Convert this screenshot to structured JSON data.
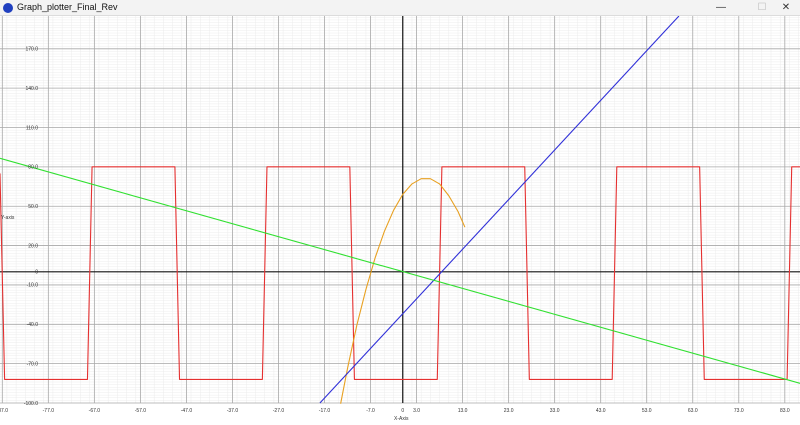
{
  "window": {
    "title": "Graph_plotter_Final_Rev",
    "minimize_glyph": "—",
    "maximize_glyph": "☐",
    "close_glyph": "✕"
  },
  "chart_data": {
    "type": "line",
    "xlabel": "X-Axis",
    "ylabel": "Y-axis",
    "xlim": [
      -87.5,
      86.3
    ],
    "ylim": [
      -100,
      195
    ],
    "x_ticks": [
      -87.0,
      -77.0,
      -67.0,
      -57.0,
      -47.0,
      -37.0,
      -27.0,
      -17.0,
      -7.0,
      0,
      3.0,
      13.0,
      23.0,
      33.0,
      43.0,
      53.0,
      63.0,
      73.0,
      83.0
    ],
    "x_tick_labels": [
      "-87.0",
      "-77.0",
      "-67.0",
      "-57.0",
      "-47.0",
      "-37.0",
      "-27.0",
      "-17.0",
      "-7.0",
      "0",
      "3.0",
      "13.0",
      "23.0",
      "33.0",
      "43.0",
      "53.0",
      "63.0",
      "73.0",
      "83.0"
    ],
    "y_ticks": [
      170,
      140,
      110,
      80,
      50,
      20,
      0,
      -10,
      -40,
      -70,
      -100
    ],
    "y_tick_labels": [
      "170.0",
      "140.0",
      "110.0",
      "80.0",
      "50.0",
      "20.0",
      "0",
      "-10.0",
      "-40.0",
      "-70.0",
      "-100.0"
    ],
    "major_grid_x_step": 10,
    "major_grid_y_step": 30,
    "minor_grid_step": 2,
    "grid": true,
    "series": [
      {
        "color": "#e53030",
        "x": [
          -87.5,
          -86.5,
          -68.5,
          -67.5,
          -49.5,
          -48.5,
          -30.5,
          -29.5,
          -11.5,
          -10.5,
          7.5,
          8.5,
          26.5,
          27.5,
          45.5,
          46.5,
          64.5,
          65.5,
          83.5,
          84.5,
          86.3
        ],
        "y": [
          75,
          -82,
          -82,
          80,
          80,
          -82,
          -82,
          80,
          80,
          -82,
          -82,
          80,
          80,
          -82,
          -82,
          80,
          80,
          -82,
          -82,
          80,
          80
        ]
      },
      {
        "color": "#e8a020",
        "x": [
          -13.5,
          -12,
          -10,
          -8,
          -6,
          -4,
          -2,
          0,
          2,
          4,
          6,
          8,
          10,
          12,
          13.5
        ],
        "y": [
          -100.6,
          -73.6,
          -41,
          -13.4,
          10.7,
          30.8,
          46.9,
          59,
          67,
          71,
          71,
          67,
          58,
          46,
          34
        ]
      },
      {
        "color": "#3030d8",
        "x": [
          -18,
          60
        ],
        "y": [
          -100,
          195
        ]
      },
      {
        "color": "#30e030",
        "x": [
          -87.5,
          86.3
        ],
        "y": [
          86.5,
          -85
        ]
      }
    ]
  }
}
